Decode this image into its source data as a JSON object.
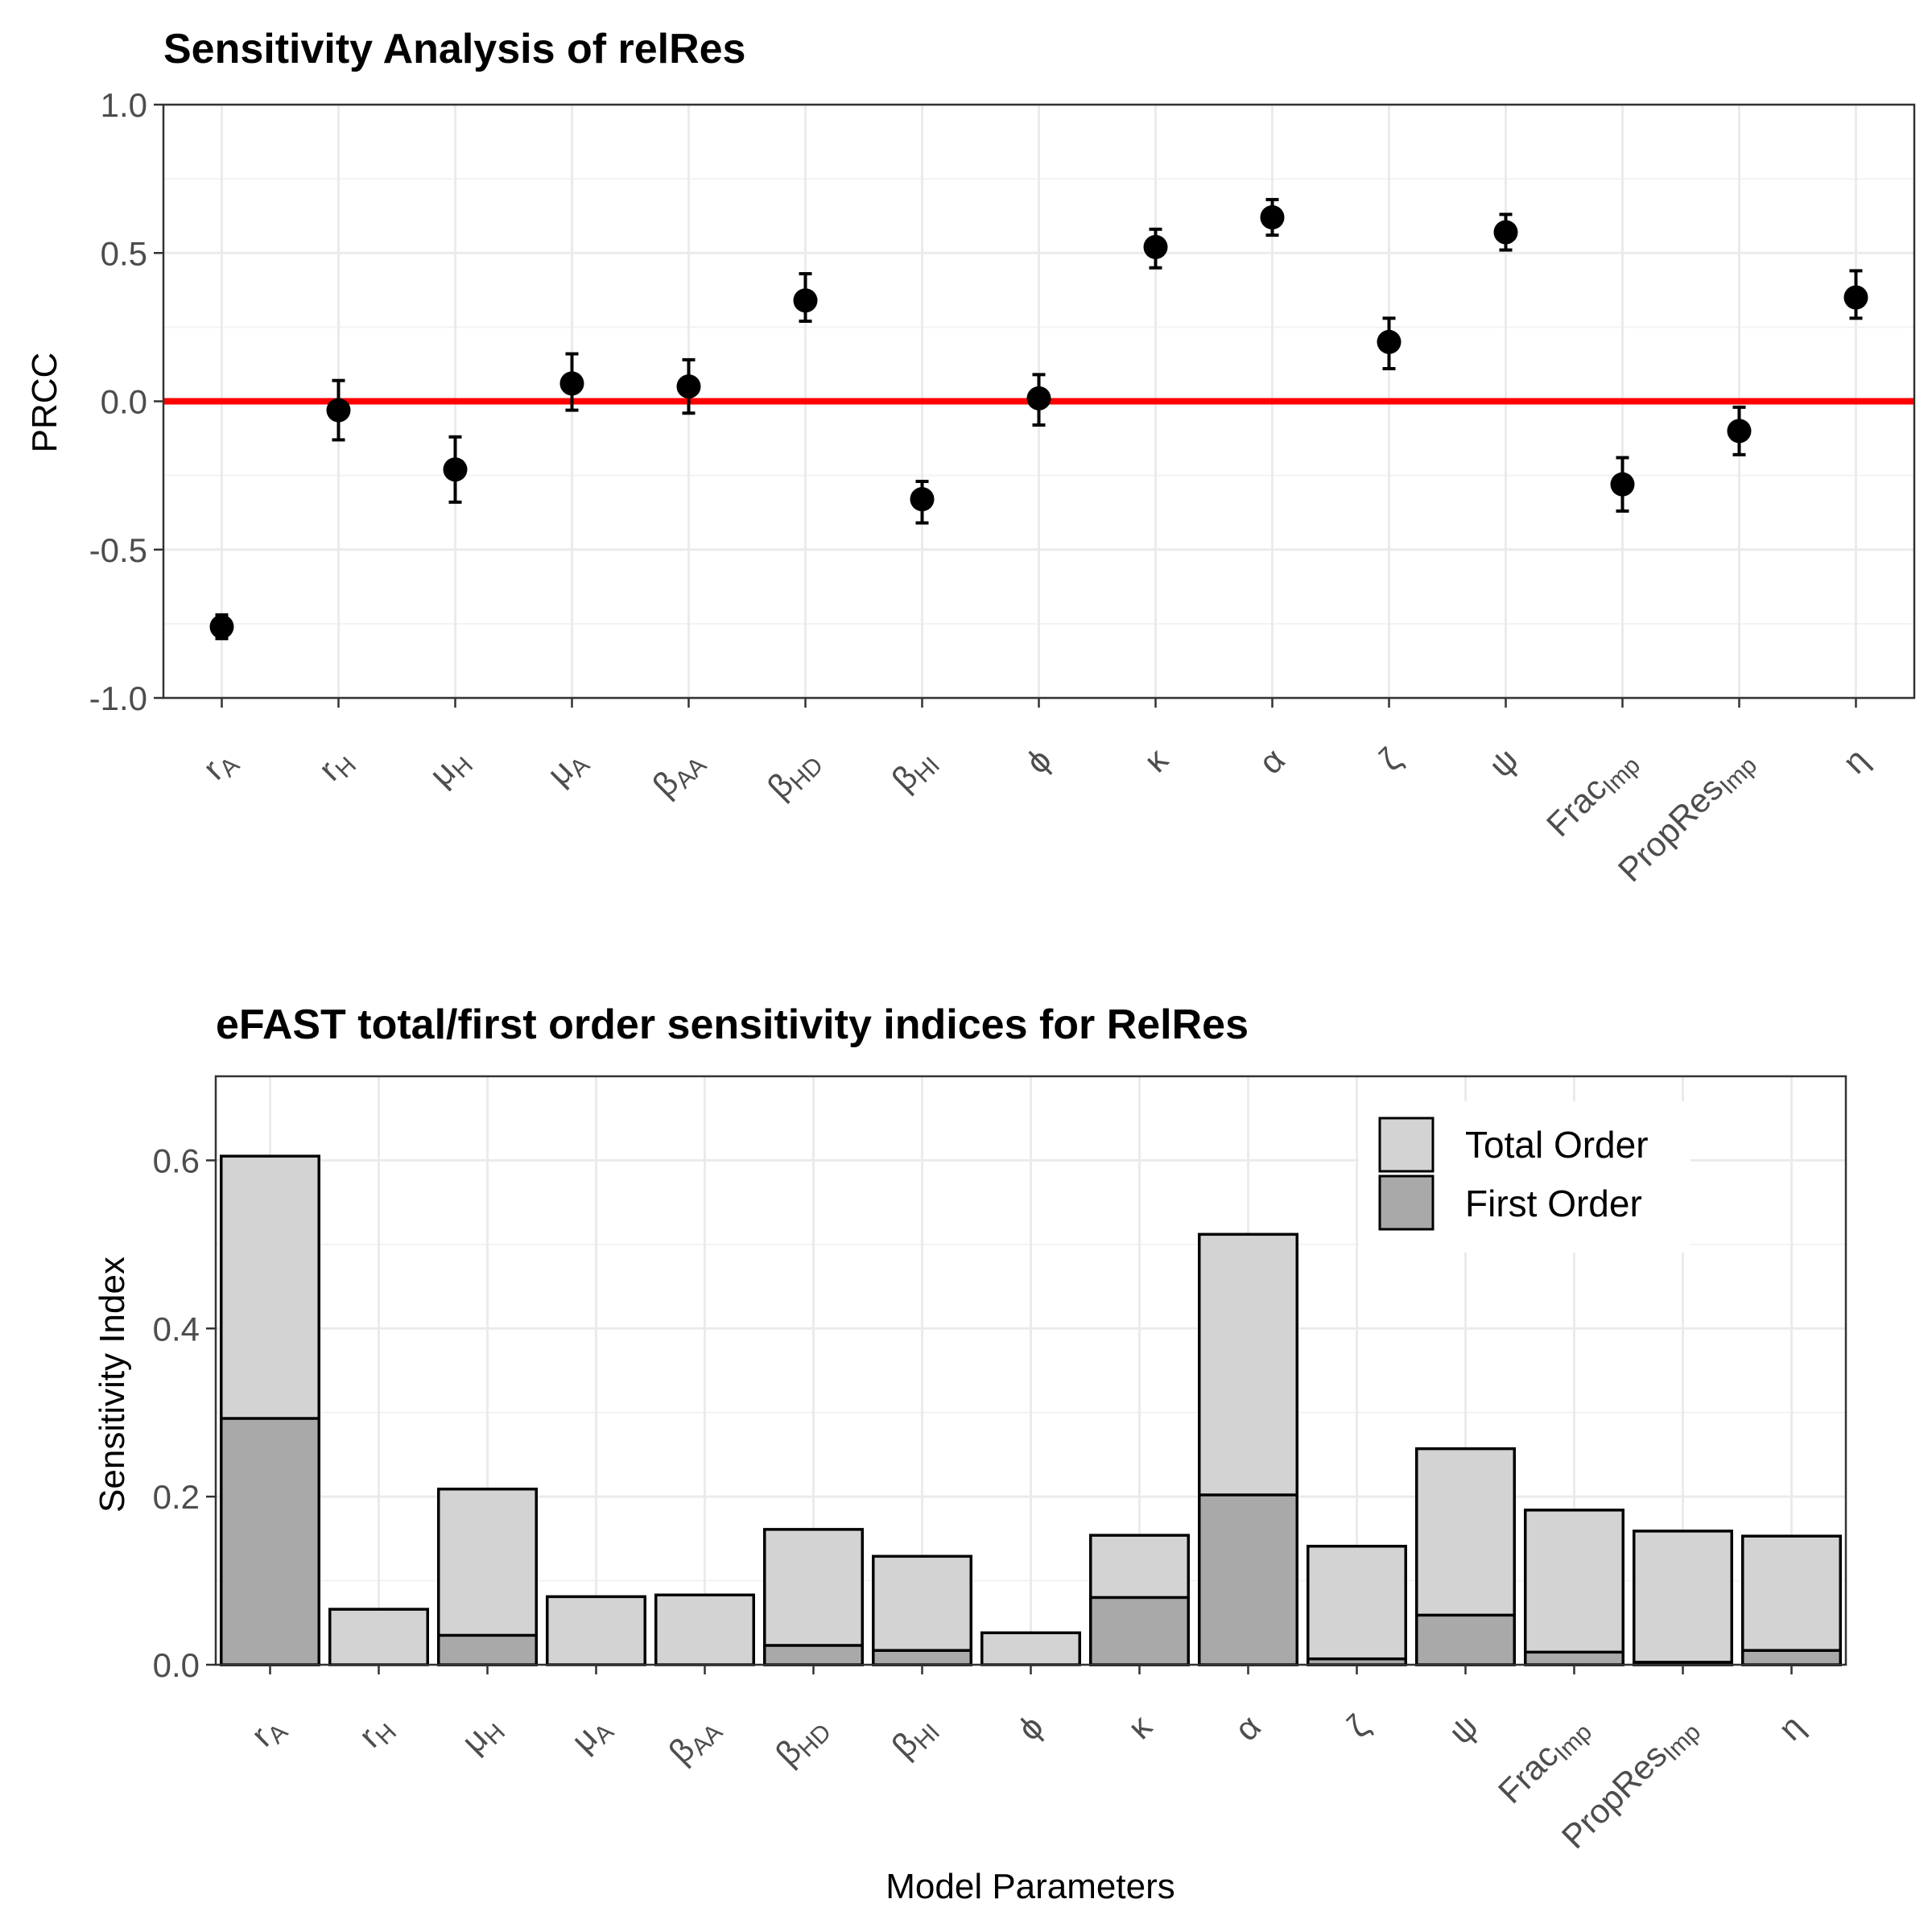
{
  "top_panel_title": "Sensitivity Analysis of relRes",
  "bottom_panel_title": "eFAST total/first order sensitivity indices for RelRes",
  "colors": {
    "zero_line": "#ff0000",
    "points": "#000000",
    "total_order_fill": "#d3d3d3",
    "first_order_fill": "#a9a9a9",
    "bar_border": "#000000"
  },
  "chart_data": [
    {
      "type": "scatter",
      "title": "Sensitivity Analysis of relRes",
      "xlabel": "",
      "ylabel": "PRCC",
      "ylim": [
        -1.0,
        1.0
      ],
      "yticks": [
        "1.0",
        "0.5",
        "0.0",
        "-0.5",
        "-1.0"
      ],
      "ytick_values": [
        1.0,
        0.5,
        0.0,
        -0.5,
        -1.0
      ],
      "grid": true,
      "reference_line": {
        "y": 0.0,
        "color": "#ff0000"
      },
      "categories": [
        {
          "base": "r",
          "sub": "A"
        },
        {
          "base": "r",
          "sub": "H"
        },
        {
          "base": "μ",
          "sub": "H"
        },
        {
          "base": "μ",
          "sub": "A"
        },
        {
          "base": "β",
          "sub": "AA"
        },
        {
          "base": "β",
          "sub": "HD"
        },
        {
          "base": "β",
          "sub": "HI"
        },
        {
          "base": "ϕ",
          "sub": ""
        },
        {
          "base": "κ",
          "sub": ""
        },
        {
          "base": "α",
          "sub": ""
        },
        {
          "base": "ζ",
          "sub": ""
        },
        {
          "base": "ψ",
          "sub": ""
        },
        {
          "base": "Frac",
          "sub": "Imp"
        },
        {
          "base": "PropRes",
          "sub": "Imp"
        },
        {
          "base": "η",
          "sub": ""
        }
      ],
      "values": [
        -0.76,
        -0.03,
        -0.23,
        0.06,
        0.05,
        0.34,
        -0.33,
        0.01,
        0.52,
        0.62,
        0.2,
        0.57,
        -0.28,
        -0.1,
        0.35
      ],
      "error_low": [
        -0.8,
        -0.13,
        -0.34,
        -0.03,
        -0.04,
        0.27,
        -0.41,
        -0.08,
        0.45,
        0.56,
        0.11,
        0.51,
        -0.37,
        -0.18,
        0.28
      ],
      "error_high": [
        -0.72,
        0.07,
        -0.12,
        0.16,
        0.14,
        0.43,
        -0.27,
        0.09,
        0.58,
        0.68,
        0.28,
        0.63,
        -0.19,
        -0.02,
        0.44
      ]
    },
    {
      "type": "bar",
      "title": "eFAST total/first order sensitivity indices for RelRes",
      "xlabel": "Model Parameters",
      "ylabel": "Sensitivity Index",
      "ylim": [
        0,
        0.7
      ],
      "yticks": [
        "0.6",
        "0.4",
        "0.2",
        "0.0"
      ],
      "ytick_values": [
        0.6,
        0.4,
        0.2,
        0.0
      ],
      "grid": true,
      "legend_position": "top-right",
      "categories": [
        {
          "base": "r",
          "sub": "A"
        },
        {
          "base": "r",
          "sub": "H"
        },
        {
          "base": "μ",
          "sub": "H"
        },
        {
          "base": "μ",
          "sub": "A"
        },
        {
          "base": "β",
          "sub": "AA"
        },
        {
          "base": "β",
          "sub": "HD"
        },
        {
          "base": "β",
          "sub": "HI"
        },
        {
          "base": "ϕ",
          "sub": ""
        },
        {
          "base": "κ",
          "sub": ""
        },
        {
          "base": "α",
          "sub": ""
        },
        {
          "base": "ζ",
          "sub": ""
        },
        {
          "base": "ψ",
          "sub": ""
        },
        {
          "base": "Frac",
          "sub": "Imp"
        },
        {
          "base": "PropRes",
          "sub": "Imp"
        },
        {
          "base": "η",
          "sub": ""
        }
      ],
      "series": [
        {
          "name": "Total Order",
          "color": "#d3d3d3",
          "values": [
            0.605,
            0.066,
            0.209,
            0.081,
            0.083,
            0.161,
            0.129,
            0.038,
            0.154,
            0.512,
            0.141,
            0.257,
            0.184,
            0.159,
            0.153
          ]
        },
        {
          "name": "First Order",
          "color": "#a9a9a9",
          "values": [
            0.293,
            0.0,
            0.035,
            0.0,
            0.0,
            0.023,
            0.017,
            0.0,
            0.08,
            0.202,
            0.007,
            0.059,
            0.015,
            0.003,
            0.017
          ]
        }
      ]
    }
  ]
}
